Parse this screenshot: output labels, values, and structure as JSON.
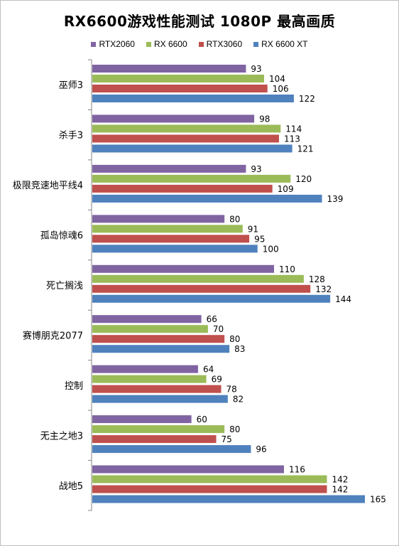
{
  "chart_data": {
    "type": "bar",
    "orientation": "horizontal",
    "title": "RX6600游戏性能测试 1080P 最高画质",
    "categories": [
      "巫师3",
      "杀手3",
      "极限竞速地平线4",
      "孤岛惊魂6",
      "死亡搁浅",
      "赛博朋克2077",
      "控制",
      "无主之地3",
      "战地5"
    ],
    "series": [
      {
        "name": "RTX2060",
        "color": "#8064a2",
        "values": [
          93,
          98,
          93,
          80,
          110,
          66,
          64,
          60,
          116
        ]
      },
      {
        "name": "RX 6600",
        "color": "#9bbb59",
        "values": [
          104,
          114,
          120,
          91,
          128,
          70,
          69,
          80,
          142
        ]
      },
      {
        "name": "RTX3060",
        "color": "#c0504d",
        "values": [
          106,
          113,
          109,
          95,
          132,
          80,
          78,
          75,
          142
        ]
      },
      {
        "name": "RX 6600 XT",
        "color": "#4f81bd",
        "values": [
          122,
          121,
          139,
          100,
          144,
          83,
          82,
          96,
          165
        ]
      }
    ],
    "xlim": [
      0,
      170
    ],
    "grid": false,
    "legend": "top-center",
    "data_labels": true
  }
}
